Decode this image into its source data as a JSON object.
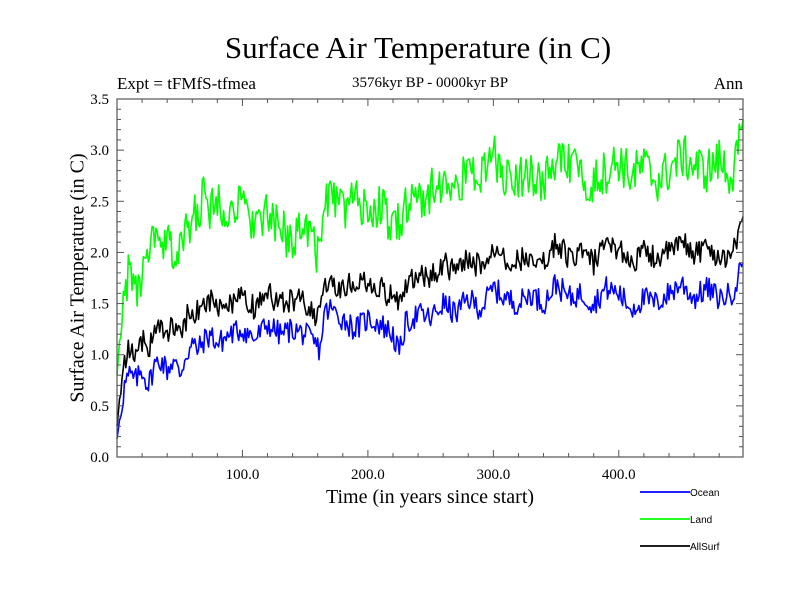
{
  "chart_data": {
    "type": "line",
    "title": "Surface Air Temperature (in C)",
    "subtitle": "3576kyr BP - 0000kyr BP",
    "top_left_label": "Expt = tFMfS-tfmea",
    "top_right_label": "Ann",
    "xlabel": "Time (in years since start)",
    "ylabel": "Surface Air Temperature (in C)",
    "xlim": [
      0,
      499
    ],
    "ylim": [
      0.0,
      3.5
    ],
    "xticks": [
      100,
      200,
      300,
      400
    ],
    "xtick_labels": [
      "100.0",
      "200.0",
      "300.0",
      "400.0"
    ],
    "xminor_step": 20,
    "yticks": [
      0.0,
      0.5,
      1.0,
      1.5,
      2.0,
      2.5,
      3.0,
      3.5
    ],
    "ytick_labels": [
      "0.0",
      "0.5",
      "1.0",
      "1.5",
      "2.0",
      "2.5",
      "3.0",
      "3.5"
    ],
    "yminor_step": 0.1,
    "grid": false,
    "legend_position": "bottom-right, below plot",
    "x": [
      0,
      3,
      6,
      10,
      15,
      20,
      25,
      30,
      35,
      40,
      45,
      50,
      55,
      60,
      65,
      70,
      75,
      80,
      90,
      100,
      110,
      120,
      130,
      140,
      150,
      158,
      162,
      165,
      170,
      180,
      190,
      200,
      210,
      220,
      225,
      230,
      240,
      250,
      260,
      270,
      280,
      290,
      300,
      310,
      320,
      330,
      340,
      350,
      360,
      370,
      380,
      390,
      400,
      410,
      420,
      430,
      440,
      450,
      460,
      470,
      480,
      490,
      495,
      499
    ],
    "series": [
      {
        "name": "Ocean",
        "color": "#0000ff",
        "values": [
          0.18,
          0.45,
          0.7,
          0.8,
          0.75,
          0.85,
          0.7,
          0.9,
          0.95,
          0.85,
          0.95,
          0.8,
          1.0,
          1.1,
          1.05,
          1.15,
          1.2,
          1.1,
          1.2,
          1.25,
          1.15,
          1.3,
          1.2,
          1.25,
          1.2,
          1.1,
          1.05,
          1.4,
          1.45,
          1.35,
          1.25,
          1.35,
          1.3,
          1.2,
          1.0,
          1.3,
          1.4,
          1.35,
          1.5,
          1.4,
          1.55,
          1.45,
          1.65,
          1.55,
          1.5,
          1.6,
          1.5,
          1.7,
          1.55,
          1.6,
          1.5,
          1.65,
          1.6,
          1.45,
          1.55,
          1.5,
          1.6,
          1.7,
          1.55,
          1.65,
          1.55,
          1.6,
          1.75,
          1.9
        ]
      },
      {
        "name": "Land",
        "color": "#00ff00",
        "values": [
          0.8,
          1.3,
          1.6,
          1.85,
          1.6,
          1.75,
          1.9,
          2.2,
          1.95,
          2.1,
          2.0,
          2.0,
          2.2,
          2.3,
          2.45,
          2.55,
          2.4,
          2.5,
          2.45,
          2.45,
          2.3,
          2.35,
          2.2,
          2.15,
          2.3,
          2.05,
          1.95,
          2.55,
          2.5,
          2.45,
          2.5,
          2.4,
          2.45,
          2.25,
          2.3,
          2.45,
          2.5,
          2.6,
          2.7,
          2.6,
          2.8,
          2.75,
          2.95,
          2.7,
          2.75,
          2.8,
          2.65,
          2.9,
          2.85,
          2.75,
          2.7,
          2.8,
          2.9,
          2.75,
          2.85,
          2.7,
          2.8,
          2.95,
          2.85,
          2.8,
          2.9,
          2.75,
          2.95,
          3.3
        ]
      },
      {
        "name": "AllSurf",
        "color": "#000000",
        "values": [
          0.3,
          0.7,
          0.95,
          1.05,
          1.0,
          1.15,
          1.05,
          1.3,
          1.25,
          1.2,
          1.3,
          1.2,
          1.35,
          1.45,
          1.4,
          1.5,
          1.55,
          1.45,
          1.5,
          1.55,
          1.45,
          1.6,
          1.5,
          1.55,
          1.5,
          1.4,
          1.35,
          1.75,
          1.7,
          1.65,
          1.7,
          1.7,
          1.65,
          1.55,
          1.5,
          1.7,
          1.8,
          1.75,
          1.9,
          1.8,
          1.95,
          1.85,
          2.05,
          1.95,
          1.9,
          2.0,
          1.9,
          2.1,
          1.95,
          2.0,
          1.9,
          2.05,
          2.05,
          1.9,
          2.0,
          1.95,
          2.0,
          2.1,
          2.0,
          2.05,
          1.95,
          2.0,
          2.15,
          2.35
        ]
      }
    ]
  }
}
